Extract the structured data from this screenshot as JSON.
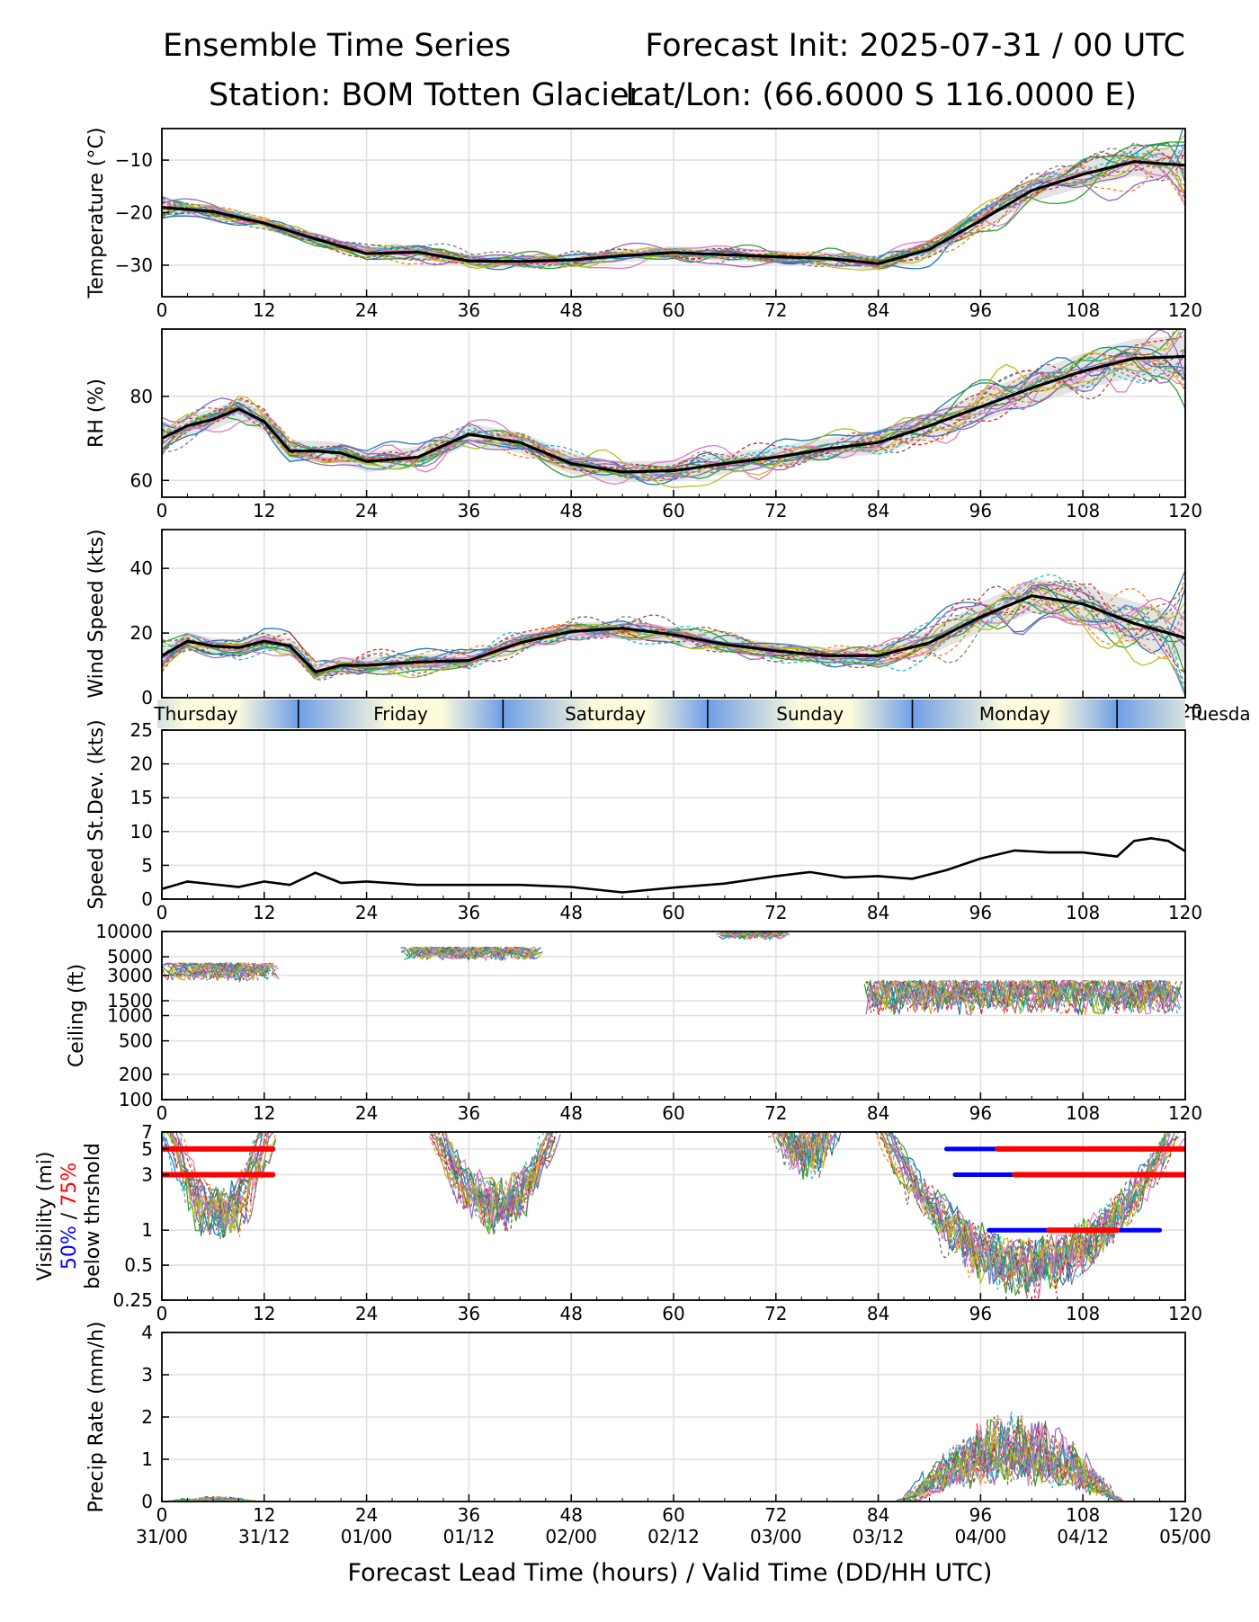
{
  "header": {
    "left_line1": "Ensemble Time Series",
    "right_line1": "Forecast Init: 2025-07-31 / 00 UTC",
    "left_line2": "Station: BOM Totten Glacier",
    "right_line2": "Lat/Lon: (66.6000 S 116.0000 E)"
  },
  "x_axis": {
    "lead_ticks": [
      "0",
      "12",
      "24",
      "36",
      "48",
      "60",
      "72",
      "84",
      "96",
      "108",
      "120"
    ],
    "valid_ticks": [
      "31/00",
      "31/12",
      "01/00",
      "01/12",
      "02/00",
      "02/12",
      "03/00",
      "03/12",
      "04/00",
      "04/12",
      "05/00"
    ],
    "xlabel": "Forecast Lead Time (hours) / Valid Time (DD/HH UTC)"
  },
  "day_band": {
    "days": [
      "Thursday",
      "Friday",
      "Saturday",
      "Sunday",
      "Monday",
      "Tuesda"
    ],
    "day_label_hours": [
      4,
      28,
      52,
      76,
      100,
      124
    ],
    "divider_hours": [
      16,
      40,
      64,
      88,
      112
    ]
  },
  "colors": {
    "mean_line": "#000000",
    "spread_fill": "#d9d9d9",
    "visibility_50": "#0000ff",
    "visibility_75": "#ff0000",
    "day_band_day": "#fdfbdc",
    "day_band_night": "#6f9ee6",
    "grid": "#e0e0e0",
    "member_palette": [
      "#1f77b4",
      "#ff7f0e",
      "#2ca02c",
      "#d62728",
      "#9467bd",
      "#8c564b",
      "#e377c2",
      "#7f7f7f",
      "#bcbd22",
      "#17becf"
    ]
  },
  "chart_data": [
    {
      "id": "temperature",
      "type": "line",
      "ylabel": "Temperature (°C)",
      "xlim": [
        0,
        120
      ],
      "ylim": [
        -36,
        -4
      ],
      "yticks": [
        -30,
        -20,
        -10
      ],
      "ytick_labels": [
        "−30",
        "−20",
        "−10"
      ],
      "grid": true,
      "x": [
        0,
        6,
        12,
        18,
        24,
        30,
        36,
        42,
        48,
        54,
        60,
        66,
        72,
        78,
        84,
        90,
        96,
        102,
        108,
        114,
        120
      ],
      "mean": [
        -19,
        -19.8,
        -22,
        -25,
        -27.8,
        -27.5,
        -29.2,
        -29.3,
        -29,
        -28.2,
        -27.6,
        -28,
        -28.4,
        -28.7,
        -29.7,
        -27,
        -21.5,
        -15.8,
        -12.7,
        -10.3,
        -11
      ],
      "spread": 1.2,
      "spread_growth": 2.5,
      "members": 20
    },
    {
      "id": "rh",
      "type": "line",
      "ylabel": "RH (%)",
      "xlim": [
        0,
        120
      ],
      "ylim": [
        56,
        96
      ],
      "yticks": [
        60,
        80
      ],
      "ytick_labels": [
        "60",
        "80"
      ],
      "grid": true,
      "x": [
        0,
        3,
        6,
        9,
        12,
        15,
        18,
        21,
        24,
        30,
        36,
        42,
        48,
        54,
        60,
        66,
        72,
        78,
        84,
        90,
        96,
        102,
        108,
        114,
        120
      ],
      "mean": [
        70,
        73,
        74.5,
        77,
        74,
        67,
        67,
        66.5,
        64.5,
        65.5,
        71,
        69,
        64,
        62,
        62.3,
        64,
        65.5,
        67.5,
        69,
        73,
        77.5,
        82,
        86,
        89,
        89.5
      ],
      "spread": 2.5,
      "spread_growth": 2.0,
      "members": 20
    },
    {
      "id": "wind_speed",
      "type": "line",
      "ylabel": "Wind Speed (kts)",
      "xlim": [
        0,
        120
      ],
      "ylim": [
        0,
        52
      ],
      "yticks": [
        0,
        20,
        40
      ],
      "ytick_labels": [
        "0",
        "20",
        "40"
      ],
      "grid": true,
      "x": [
        0,
        3,
        6,
        9,
        12,
        15,
        18,
        21,
        24,
        30,
        36,
        42,
        48,
        54,
        60,
        66,
        72,
        78,
        84,
        90,
        96,
        102,
        108,
        114,
        120
      ],
      "mean": [
        13,
        17.5,
        16,
        15.5,
        17.5,
        16,
        8,
        10,
        10,
        11,
        11.5,
        17,
        20.5,
        21.5,
        19.5,
        16.5,
        14.5,
        13,
        13,
        17,
        25,
        31.5,
        29,
        23,
        18.5
      ],
      "spread": 2.5,
      "spread_growth": 3.0,
      "members": 20
    },
    {
      "id": "speed_stdev",
      "type": "line",
      "ylabel": "Speed St.Dev. (kts)",
      "xlim": [
        0,
        120
      ],
      "ylim": [
        0,
        25
      ],
      "yticks": [
        0,
        5,
        10,
        15,
        20,
        25
      ],
      "ytick_labels": [
        "0",
        "5",
        "10",
        "15",
        "20",
        "25"
      ],
      "grid": true,
      "x": [
        0,
        3,
        6,
        9,
        12,
        15,
        18,
        21,
        24,
        30,
        36,
        42,
        48,
        54,
        60,
        66,
        72,
        76,
        80,
        84,
        88,
        92,
        96,
        100,
        104,
        108,
        112,
        114,
        116,
        118,
        120
      ],
      "values": [
        1.5,
        2.6,
        2.2,
        1.8,
        2.6,
        2.1,
        3.9,
        2.4,
        2.6,
        2.1,
        2.1,
        2.1,
        1.8,
        1.0,
        1.7,
        2.3,
        3.4,
        4.0,
        3.2,
        3.4,
        3.0,
        4.3,
        6.0,
        7.2,
        6.9,
        6.9,
        6.3,
        8.6,
        9.0,
        8.6,
        7.1
      ]
    },
    {
      "id": "ceiling",
      "type": "line",
      "ylabel": "Ceiling (ft)",
      "yscale": "log",
      "xlim": [
        0,
        120
      ],
      "ylim": [
        100,
        10000
      ],
      "yticks": [
        100,
        200,
        500,
        1000,
        1500,
        3000,
        5000,
        10000
      ],
      "ytick_labels": [
        "100",
        "200",
        "500",
        "1000",
        "1500",
        "3000",
        "5000",
        "10000"
      ],
      "grid": true,
      "members": 20,
      "cloud_episodes": [
        {
          "start": 0,
          "end": 14,
          "base": 4200,
          "floor": 2500
        },
        {
          "start": 28,
          "end": 45,
          "base": 6500,
          "floor": 4500
        },
        {
          "start": 65,
          "end": 74,
          "base": 9800,
          "floor": 8000
        },
        {
          "start": 82,
          "end": 120,
          "base": 2600,
          "floor": 1000
        }
      ]
    },
    {
      "id": "visibility",
      "type": "line",
      "ylabel": "Visibility (mi)",
      "ylabel_50": "50%",
      "ylabel_sep": " / ",
      "ylabel_75": "75%",
      "ylabel_line3": "below thrshold",
      "yscale": "log",
      "xlim": [
        0,
        120
      ],
      "ylim": [
        0.25,
        7
      ],
      "yticks": [
        0.25,
        0.5,
        1,
        3,
        5,
        7
      ],
      "ytick_labels": [
        "0.25",
        "0.5",
        "1",
        "3",
        "5",
        "7"
      ],
      "grid": true,
      "members": 20,
      "fog_episodes": [
        {
          "start": 0,
          "end": 13.5,
          "min": 0.8
        },
        {
          "start": 31,
          "end": 47,
          "min": 1.0
        },
        {
          "start": 71,
          "end": 80,
          "min": 3.0
        },
        {
          "start": 83,
          "end": 120,
          "min": 0.3
        }
      ],
      "threshold_runs": [
        {
          "threshold": 5,
          "level": 75,
          "start": 0,
          "end": 13
        },
        {
          "threshold": 3,
          "level": 75,
          "start": 0,
          "end": 13
        },
        {
          "threshold": 5,
          "level": 50,
          "start": 92,
          "end": 120
        },
        {
          "threshold": 5,
          "level": 75,
          "start": 98,
          "end": 120
        },
        {
          "threshold": 3,
          "level": 50,
          "start": 93,
          "end": 120
        },
        {
          "threshold": 3,
          "level": 75,
          "start": 100,
          "end": 120
        },
        {
          "threshold": 1,
          "level": 50,
          "start": 97,
          "end": 117
        },
        {
          "threshold": 1,
          "level": 75,
          "start": 104,
          "end": 112
        }
      ]
    },
    {
      "id": "precip_rate",
      "type": "line",
      "ylabel": "Precip Rate (mm/h)",
      "xlim": [
        0,
        120
      ],
      "ylim": [
        0,
        4
      ],
      "yticks": [
        0,
        1,
        2,
        3,
        4
      ],
      "ytick_labels": [
        "0",
        "1",
        "2",
        "3",
        "4"
      ],
      "grid": true,
      "members": 20,
      "precip_episodes": [
        {
          "start": 0,
          "end": 14,
          "peak": 0.12
        },
        {
          "start": 86,
          "end": 120,
          "peak": 2.2
        }
      ]
    }
  ]
}
